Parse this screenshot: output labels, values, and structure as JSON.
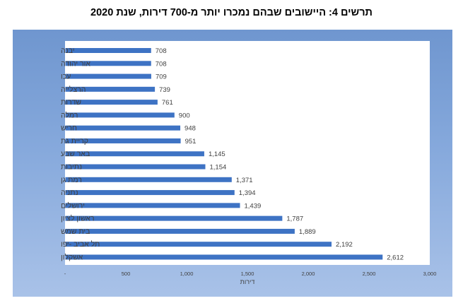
{
  "chart_data": {
    "type": "bar",
    "orientation": "horizontal",
    "title": "תרשים 4: היישובים שבהם נמכרו יותר מ-700 דירות, שנת 2020",
    "xlabel": "דירות",
    "ylabel": "",
    "categories": [
      "יבנה",
      "אור יהודה",
      "עכו",
      "הרצלייה",
      "שדרות",
      "רמלה",
      "חריש",
      "קריית גת",
      "באר שבע",
      "נתיבות",
      "רמת גן",
      "נתניה",
      "ירושלים",
      "ראשון לציון",
      "בית שמש",
      "תל אביב -יפו",
      "אשקלון"
    ],
    "values": [
      708,
      708,
      709,
      739,
      761,
      900,
      948,
      951,
      1145,
      1154,
      1371,
      1394,
      1439,
      1787,
      1889,
      2192,
      2612
    ],
    "value_labels": [
      "708",
      "708",
      "709",
      "739",
      "761",
      "900",
      "948",
      "951",
      "1,145",
      "1,154",
      "1,371",
      "1,394",
      "1,439",
      "1,787",
      "1,889",
      "2,192",
      "2,612"
    ],
    "xlim": [
      0,
      3000
    ],
    "xticks": [
      0,
      500,
      1000,
      1500,
      2000,
      2500,
      3000
    ],
    "xtick_labels": [
      "-",
      "500",
      "1,000",
      "1,500",
      "2,000",
      "2,500",
      "3,000"
    ],
    "grid": false,
    "legend": "none",
    "colors": {
      "bar": "#3e73c4",
      "frame": "#86a9dc",
      "plot_bg": "#ffffff",
      "text": "#404040"
    }
  }
}
